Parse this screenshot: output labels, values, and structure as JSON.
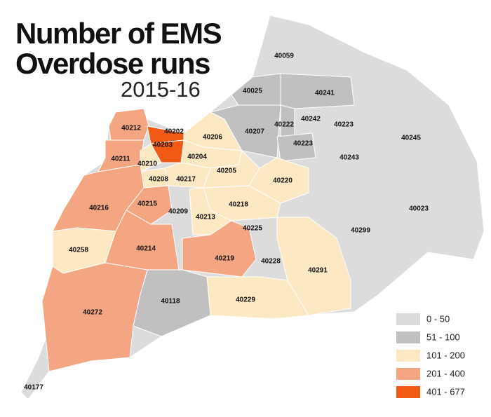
{
  "title_lines": [
    "Number of EMS",
    "Overdose runs"
  ],
  "subtitle": "2015-16",
  "legend": [
    {
      "label": "0 - 50",
      "color": "#dcdcdc"
    },
    {
      "label": "51 - 100",
      "color": "#c0c0c0"
    },
    {
      "label": "101 - 200",
      "color": "#fde8c4"
    },
    {
      "label": "201 - 400",
      "color": "#f4a582"
    },
    {
      "label": "401 - 677",
      "color": "#f05a14"
    }
  ],
  "regions": [
    {
      "label": "40059",
      "class": 0
    },
    {
      "label": "40025",
      "class": 1
    },
    {
      "label": "40241",
      "class": 1
    },
    {
      "label": "40207",
      "class": 1
    },
    {
      "label": "40222",
      "class": 1
    },
    {
      "label": "40242",
      "class": 0
    },
    {
      "label": "40223",
      "class": 0
    },
    {
      "label": "40223",
      "class": 1
    },
    {
      "label": "40245",
      "class": 0
    },
    {
      "label": "40243",
      "class": 0
    },
    {
      "label": "40212",
      "class": 3
    },
    {
      "label": "40202",
      "class": 4
    },
    {
      "label": "40203",
      "class": 4
    },
    {
      "label": "40206",
      "class": 2
    },
    {
      "label": "40204",
      "class": 2
    },
    {
      "label": "40211",
      "class": 3
    },
    {
      "label": "40210",
      "class": 2
    },
    {
      "label": "40208",
      "class": 2
    },
    {
      "label": "40217",
      "class": 2
    },
    {
      "label": "40205",
      "class": 2
    },
    {
      "label": "40220",
      "class": 2
    },
    {
      "label": "40216",
      "class": 3
    },
    {
      "label": "40215",
      "class": 3
    },
    {
      "label": "40209",
      "class": 0
    },
    {
      "label": "40218",
      "class": 2
    },
    {
      "label": "40213",
      "class": 2
    },
    {
      "label": "40023",
      "class": 0
    },
    {
      "label": "40225",
      "class": 0
    },
    {
      "label": "40299",
      "class": 0
    },
    {
      "label": "40258",
      "class": 2
    },
    {
      "label": "40214",
      "class": 3
    },
    {
      "label": "40219",
      "class": 3
    },
    {
      "label": "40228",
      "class": 0
    },
    {
      "label": "40291",
      "class": 2
    },
    {
      "label": "40118",
      "class": 1
    },
    {
      "label": "40229",
      "class": 2
    },
    {
      "label": "40272",
      "class": 3
    },
    {
      "label": "40177",
      "class": 0
    }
  ]
}
